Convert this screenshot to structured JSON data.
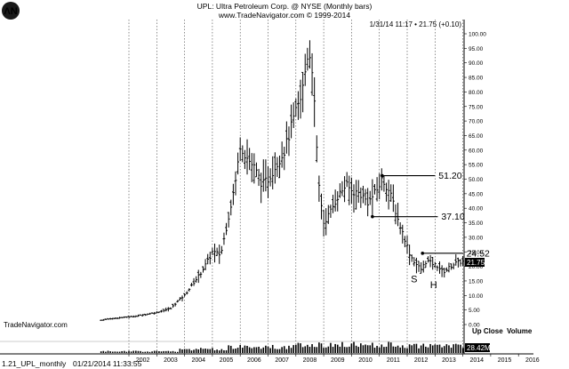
{
  "header": {
    "title": "UPL:  Ultra Petroleum Corp. @ NYSE  (Monthly bars)",
    "copyright": "www.TradeNavigator.com © 1999-2014",
    "quote": "1/31/14 11:17 • 21.75 (+0.10)"
  },
  "footer": {
    "left_text": "1.21_UPL_monthly",
    "timestamp": "01/21/2014 11:33:55"
  },
  "watermark": "TradeNavigator.com",
  "legend": {
    "up_close": "Up Close",
    "volume": "Volume"
  },
  "chart_data": {
    "type": "ohlc",
    "title": "UPL:  Ultra Petroleum Corp. @ NYSE  (Monthly bars)",
    "x_ticks": [
      "2002",
      "2003",
      "2004",
      "2005",
      "2006",
      "2007",
      "2008",
      "2009",
      "2010",
      "2011",
      "2012",
      "2013",
      "2014",
      "2015",
      "2016"
    ],
    "y_ticks": [
      "100.00",
      "95.00",
      "90.00",
      "85.00",
      "80.00",
      "75.00",
      "70.00",
      "65.00",
      "60.00",
      "55.00",
      "50.00",
      "45.00",
      "40.00",
      "35.00",
      "30.00",
      "25.00",
      "20.00",
      "15.00",
      "10.00",
      "5.00",
      "0.00"
    ],
    "ylim": [
      0,
      102
    ],
    "last_price_label": "21.75",
    "volume_label": "28.42M",
    "grid": "vertical dotted lines at year boundaries",
    "price_anchors": [
      {
        "t": 2001.0,
        "v": 1.5
      },
      {
        "t": 2001.5,
        "v": 2.2
      },
      {
        "t": 2002.0,
        "v": 2.6
      },
      {
        "t": 2002.5,
        "v": 3.3
      },
      {
        "t": 2003.0,
        "v": 4.2
      },
      {
        "t": 2003.5,
        "v": 5.5
      },
      {
        "t": 2003.8,
        "v": 8.5
      },
      {
        "t": 2004.0,
        "v": 10.0
      },
      {
        "t": 2004.3,
        "v": 14.0
      },
      {
        "t": 2004.6,
        "v": 18.0
      },
      {
        "t": 2004.9,
        "v": 23.0
      },
      {
        "t": 2005.0,
        "v": 25.0
      },
      {
        "t": 2005.3,
        "v": 24.0
      },
      {
        "t": 2005.6,
        "v": 38.0
      },
      {
        "t": 2005.85,
        "v": 50.0
      },
      {
        "t": 2006.0,
        "v": 62.0
      },
      {
        "t": 2006.2,
        "v": 58.0
      },
      {
        "t": 2006.5,
        "v": 54.0
      },
      {
        "t": 2006.8,
        "v": 48.0
      },
      {
        "t": 2007.0,
        "v": 50.0
      },
      {
        "t": 2007.3,
        "v": 55.0
      },
      {
        "t": 2007.6,
        "v": 60.0
      },
      {
        "t": 2007.9,
        "v": 70.0
      },
      {
        "t": 2008.2,
        "v": 78.0
      },
      {
        "t": 2008.45,
        "v": 95.0
      },
      {
        "t": 2008.6,
        "v": 88.0
      },
      {
        "t": 2008.8,
        "v": 50.0
      },
      {
        "t": 2009.0,
        "v": 35.0
      },
      {
        "t": 2009.2,
        "v": 38.0
      },
      {
        "t": 2009.5,
        "v": 44.0
      },
      {
        "t": 2009.8,
        "v": 48.0
      },
      {
        "t": 2010.0,
        "v": 46.0
      },
      {
        "t": 2010.3,
        "v": 45.0
      },
      {
        "t": 2010.6,
        "v": 42.0
      },
      {
        "t": 2010.9,
        "v": 46.0
      },
      {
        "t": 2011.1,
        "v": 50.0
      },
      {
        "t": 2011.3,
        "v": 47.0
      },
      {
        "t": 2011.5,
        "v": 42.0
      },
      {
        "t": 2011.7,
        "v": 35.0
      },
      {
        "t": 2011.9,
        "v": 30.0
      },
      {
        "t": 2012.1,
        "v": 24.0
      },
      {
        "t": 2012.3,
        "v": 21.0
      },
      {
        "t": 2012.5,
        "v": 19.0
      },
      {
        "t": 2012.7,
        "v": 22.0
      },
      {
        "t": 2012.9,
        "v": 21.0
      },
      {
        "t": 2013.1,
        "v": 20.0
      },
      {
        "t": 2013.3,
        "v": 18.0
      },
      {
        "t": 2013.5,
        "v": 19.5
      },
      {
        "t": 2013.7,
        "v": 21.0
      },
      {
        "t": 2013.9,
        "v": 21.5
      },
      {
        "t": 2014.08,
        "v": 21.75
      }
    ],
    "annotations": [
      {
        "label": "51.20",
        "value": 51.2,
        "from": 2011.1,
        "to": 2013.0
      },
      {
        "label": "37.10",
        "value": 37.1,
        "from": 2010.75,
        "to": 2013.1
      },
      {
        "label": "24.52",
        "value": 24.52,
        "from": 2012.55,
        "to": 2014.0
      }
    ],
    "pattern_labels": [
      {
        "label": "S",
        "t": 2012.25,
        "v": 14.5
      },
      {
        "label": "H",
        "t": 2012.95,
        "v": 12.5
      }
    ]
  }
}
